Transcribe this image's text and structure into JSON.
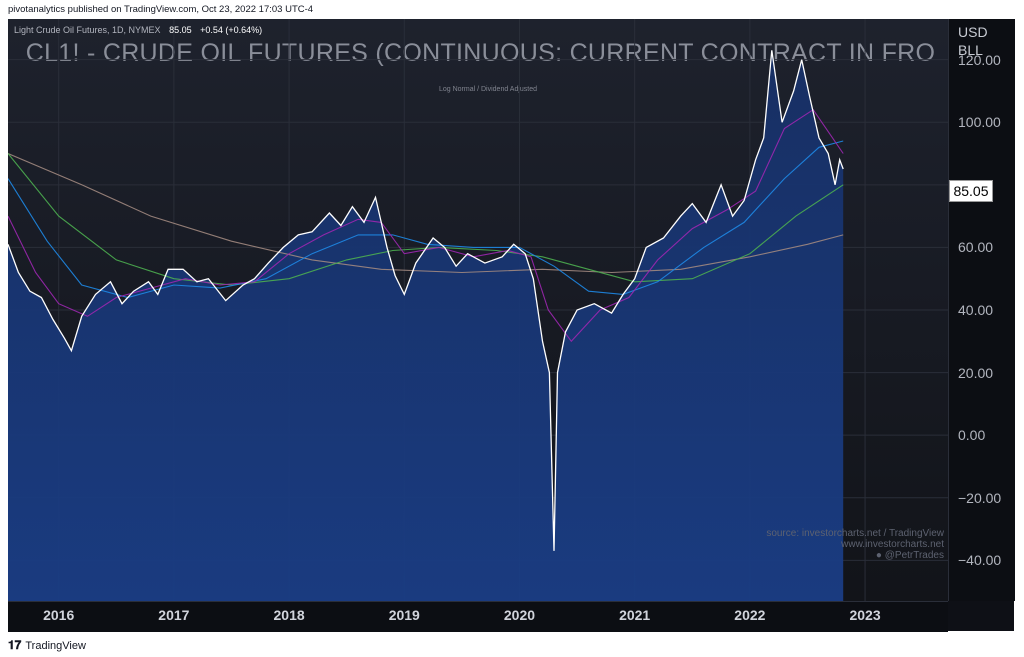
{
  "header": {
    "publisher": "pivotanalytics published on TradingView.com, Oct 23, 2022 17:03 UTC-4"
  },
  "legend": {
    "symbol_text": "Light Crude Oil Futures, 1D, NYMEX",
    "price": "85.05",
    "change": "+0.54 (+0.64%)"
  },
  "watermark": {
    "title": "CL1! - CRUDE OIL FUTURES (CONTINUOUS: CURRENT CONTRACT IN FRO",
    "subtitle": "Log Normal / Dividend Adjusted"
  },
  "price_tag": "85.05",
  "source": {
    "line1": "source: investorcharts.net / TradingView",
    "line2": "www.investorcharts.net",
    "line3": "@PetrTrades"
  },
  "footer": {
    "logo_text": "TradingView"
  },
  "colors": {
    "price": "#ffffff",
    "fill": "#1a3a7a",
    "ma_fast": "#9c27b0",
    "ma_mid": "#1e88e5",
    "ma_slow": "#4caf50",
    "ma_long": "#a1887f"
  },
  "chart_data": {
    "type": "line",
    "unit_label": [
      "USD",
      "BLL"
    ],
    "y_ticks": [
      "120.00",
      "100.00",
      "80.00",
      "60.00",
      "40.00",
      "20.00",
      "0.00",
      "−20.00",
      "−40.00"
    ],
    "ylim": [
      -53,
      133
    ],
    "x_ticks": [
      "2016",
      "2017",
      "2018",
      "2019",
      "2020",
      "2021",
      "2022",
      "2023"
    ],
    "xlim": [
      2015.56,
      2023.72
    ],
    "grid": true,
    "series": [
      {
        "values": [
          [
            2015.56,
            61
          ],
          [
            2015.65,
            52
          ],
          [
            2015.75,
            46
          ],
          [
            2015.85,
            44
          ],
          [
            2015.95,
            37
          ],
          [
            2016.05,
            31
          ],
          [
            2016.11,
            27
          ],
          [
            2016.2,
            38
          ],
          [
            2016.32,
            45
          ],
          [
            2016.45,
            49
          ],
          [
            2016.55,
            42
          ],
          [
            2016.65,
            46
          ],
          [
            2016.78,
            49
          ],
          [
            2016.86,
            45
          ],
          [
            2016.95,
            53
          ],
          [
            2017.08,
            53
          ],
          [
            2017.2,
            49
          ],
          [
            2017.3,
            50
          ],
          [
            2017.45,
            43
          ],
          [
            2017.6,
            48
          ],
          [
            2017.7,
            50
          ],
          [
            2017.82,
            55
          ],
          [
            2017.95,
            60
          ],
          [
            2018.08,
            64
          ],
          [
            2018.2,
            65
          ],
          [
            2018.35,
            71
          ],
          [
            2018.45,
            67
          ],
          [
            2018.55,
            73
          ],
          [
            2018.65,
            68
          ],
          [
            2018.75,
            76
          ],
          [
            2018.85,
            60
          ],
          [
            2018.92,
            51
          ],
          [
            2019.0,
            45
          ],
          [
            2019.1,
            55
          ],
          [
            2019.25,
            63
          ],
          [
            2019.35,
            60
          ],
          [
            2019.45,
            54
          ],
          [
            2019.55,
            58
          ],
          [
            2019.7,
            55
          ],
          [
            2019.85,
            57
          ],
          [
            2019.95,
            61
          ],
          [
            2020.05,
            58
          ],
          [
            2020.12,
            50
          ],
          [
            2020.2,
            30
          ],
          [
            2020.26,
            20
          ],
          [
            2020.3,
            -37
          ],
          [
            2020.33,
            20
          ],
          [
            2020.4,
            33
          ],
          [
            2020.5,
            40
          ],
          [
            2020.65,
            42
          ],
          [
            2020.8,
            39
          ],
          [
            2020.9,
            45
          ],
          [
            2021.0,
            50
          ],
          [
            2021.1,
            60
          ],
          [
            2021.25,
            63
          ],
          [
            2021.4,
            70
          ],
          [
            2021.5,
            74
          ],
          [
            2021.62,
            68
          ],
          [
            2021.75,
            80
          ],
          [
            2021.85,
            70
          ],
          [
            2021.95,
            75
          ],
          [
            2022.05,
            88
          ],
          [
            2022.12,
            95
          ],
          [
            2022.19,
            123
          ],
          [
            2022.28,
            100
          ],
          [
            2022.38,
            110
          ],
          [
            2022.45,
            120
          ],
          [
            2022.52,
            108
          ],
          [
            2022.6,
            95
          ],
          [
            2022.68,
            90
          ],
          [
            2022.74,
            80
          ],
          [
            2022.78,
            88
          ],
          [
            2022.81,
            85.05
          ]
        ]
      },
      {
        "values": [
          [
            2015.56,
            70
          ],
          [
            2015.8,
            52
          ],
          [
            2016.0,
            42
          ],
          [
            2016.25,
            38
          ],
          [
            2016.5,
            44
          ],
          [
            2016.8,
            47
          ],
          [
            2017.1,
            50
          ],
          [
            2017.4,
            48
          ],
          [
            2017.7,
            49
          ],
          [
            2018.0,
            58
          ],
          [
            2018.3,
            64
          ],
          [
            2018.6,
            69
          ],
          [
            2018.8,
            68
          ],
          [
            2019.0,
            58
          ],
          [
            2019.3,
            60
          ],
          [
            2019.6,
            57
          ],
          [
            2019.9,
            59
          ],
          [
            2020.1,
            57
          ],
          [
            2020.25,
            40
          ],
          [
            2020.45,
            30
          ],
          [
            2020.7,
            40
          ],
          [
            2020.95,
            44
          ],
          [
            2021.2,
            56
          ],
          [
            2021.5,
            66
          ],
          [
            2021.8,
            72
          ],
          [
            2022.05,
            78
          ],
          [
            2022.3,
            98
          ],
          [
            2022.55,
            104
          ],
          [
            2022.81,
            90
          ]
        ]
      },
      {
        "values": [
          [
            2015.56,
            82
          ],
          [
            2015.9,
            62
          ],
          [
            2016.2,
            48
          ],
          [
            2016.6,
            44
          ],
          [
            2017.0,
            48
          ],
          [
            2017.4,
            47
          ],
          [
            2017.8,
            50
          ],
          [
            2018.2,
            58
          ],
          [
            2018.6,
            64
          ],
          [
            2018.9,
            64
          ],
          [
            2019.2,
            61
          ],
          [
            2019.6,
            60
          ],
          [
            2020.0,
            60
          ],
          [
            2020.3,
            54
          ],
          [
            2020.6,
            46
          ],
          [
            2020.9,
            45
          ],
          [
            2021.2,
            49
          ],
          [
            2021.6,
            60
          ],
          [
            2021.95,
            68
          ],
          [
            2022.3,
            82
          ],
          [
            2022.6,
            92
          ],
          [
            2022.81,
            94
          ]
        ]
      },
      {
        "values": [
          [
            2015.56,
            90
          ],
          [
            2016.0,
            70
          ],
          [
            2016.5,
            56
          ],
          [
            2017.0,
            50
          ],
          [
            2017.5,
            48
          ],
          [
            2018.0,
            50
          ],
          [
            2018.5,
            56
          ],
          [
            2018.9,
            59
          ],
          [
            2019.3,
            60
          ],
          [
            2019.8,
            59
          ],
          [
            2020.2,
            57
          ],
          [
            2020.6,
            53
          ],
          [
            2021.0,
            49
          ],
          [
            2021.5,
            50
          ],
          [
            2022.0,
            58
          ],
          [
            2022.4,
            70
          ],
          [
            2022.81,
            80
          ]
        ]
      },
      {
        "values": [
          [
            2015.56,
            90
          ],
          [
            2016.2,
            80
          ],
          [
            2016.8,
            70
          ],
          [
            2017.5,
            62
          ],
          [
            2018.2,
            56
          ],
          [
            2018.8,
            53
          ],
          [
            2019.5,
            52
          ],
          [
            2020.2,
            53
          ],
          [
            2020.8,
            52
          ],
          [
            2021.4,
            53
          ],
          [
            2022.0,
            57
          ],
          [
            2022.5,
            61
          ],
          [
            2022.81,
            64
          ]
        ]
      }
    ]
  }
}
